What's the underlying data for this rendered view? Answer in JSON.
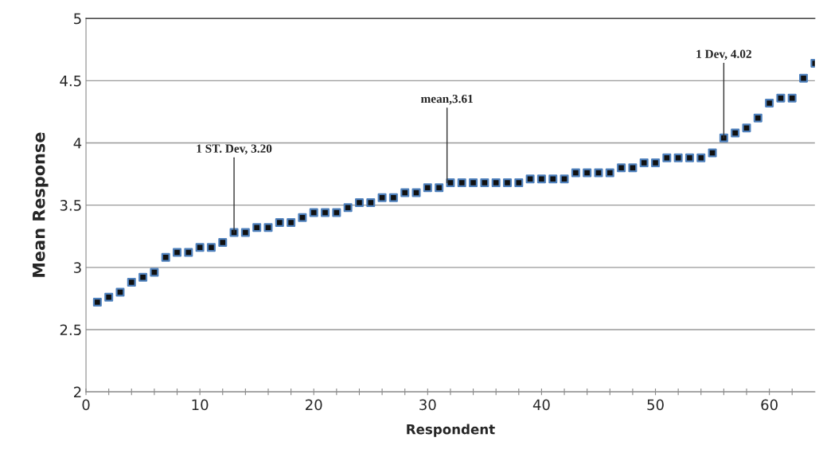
{
  "chart_data": {
    "type": "scatter",
    "xlabel": "Respondent",
    "ylabel": "Mean Response",
    "x": [
      1,
      2,
      3,
      4,
      5,
      6,
      7,
      8,
      9,
      10,
      11,
      12,
      13,
      14,
      15,
      16,
      17,
      18,
      19,
      20,
      21,
      22,
      23,
      24,
      25,
      26,
      27,
      28,
      29,
      30,
      31,
      32,
      33,
      34,
      35,
      36,
      37,
      38,
      39,
      40,
      41,
      42,
      43,
      44,
      45,
      46,
      47,
      48,
      49,
      50,
      51,
      52,
      53,
      54,
      55,
      56,
      57,
      58,
      59,
      60,
      61,
      62,
      63,
      64
    ],
    "series": [
      {
        "color": "#4f81bd",
        "values": [
          2.72,
          2.76,
          2.8,
          2.88,
          2.92,
          2.96,
          3.08,
          3.12,
          3.12,
          3.16,
          3.16,
          3.2,
          3.28,
          3.28,
          3.32,
          3.32,
          3.36,
          3.36,
          3.4,
          3.44,
          3.44,
          3.44,
          3.48,
          3.52,
          3.52,
          3.56,
          3.56,
          3.6,
          3.6,
          3.64,
          3.64,
          3.68,
          3.68,
          3.68,
          3.68,
          3.68,
          3.68,
          3.68,
          3.71,
          3.71,
          3.71,
          3.71,
          3.76,
          3.76,
          3.76,
          3.76,
          3.8,
          3.8,
          3.84,
          3.84,
          3.88,
          3.88,
          3.88,
          3.88,
          3.92,
          4.04,
          4.08,
          4.12,
          4.2,
          4.32,
          4.36,
          4.36,
          4.52,
          4.64
        ]
      }
    ],
    "annotations": [
      {
        "text": "1 ST. Dev, 3.20",
        "x": 13,
        "y": 3.28
      },
      {
        "text": "mean,3.61",
        "x": 31.7,
        "y": 3.68
      },
      {
        "text": "1 Dev, 4.02",
        "x": 56,
        "y": 4.04
      }
    ],
    "xlim": [
      0,
      64
    ],
    "ylim": [
      2,
      5
    ],
    "xticks": [
      0,
      {
        "value": 2,
        "label": null
      },
      {
        "value": 4,
        "label": null
      },
      {
        "value": 6,
        "label": null
      },
      {
        "value": 8,
        "label": null
      },
      10,
      {
        "value": 12,
        "label": null
      },
      {
        "value": 14,
        "label": null
      },
      {
        "value": 16,
        "label": null
      },
      {
        "value": 18,
        "label": null
      },
      20,
      {
        "value": 22,
        "label": null
      },
      {
        "value": 24,
        "label": null
      },
      {
        "value": 26,
        "label": null
      },
      {
        "value": 28,
        "label": null
      },
      30,
      {
        "value": 32,
        "label": null
      },
      {
        "value": 34,
        "label": null
      },
      {
        "value": 36,
        "label": null
      },
      {
        "value": 38,
        "label": null
      },
      40,
      {
        "value": 42,
        "label": null
      },
      {
        "value": 44,
        "label": null
      },
      {
        "value": 46,
        "label": null
      },
      {
        "value": 48,
        "label": null
      },
      50,
      {
        "value": 52,
        "label": null
      },
      {
        "value": 54,
        "label": null
      },
      {
        "value": 56,
        "label": null
      },
      {
        "value": 58,
        "label": null
      },
      60,
      {
        "value": 62,
        "label": null
      }
    ],
    "yticks": [
      2,
      2.5,
      3,
      3.5,
      4,
      4.5,
      5
    ],
    "grid": "y",
    "marker": "square"
  }
}
